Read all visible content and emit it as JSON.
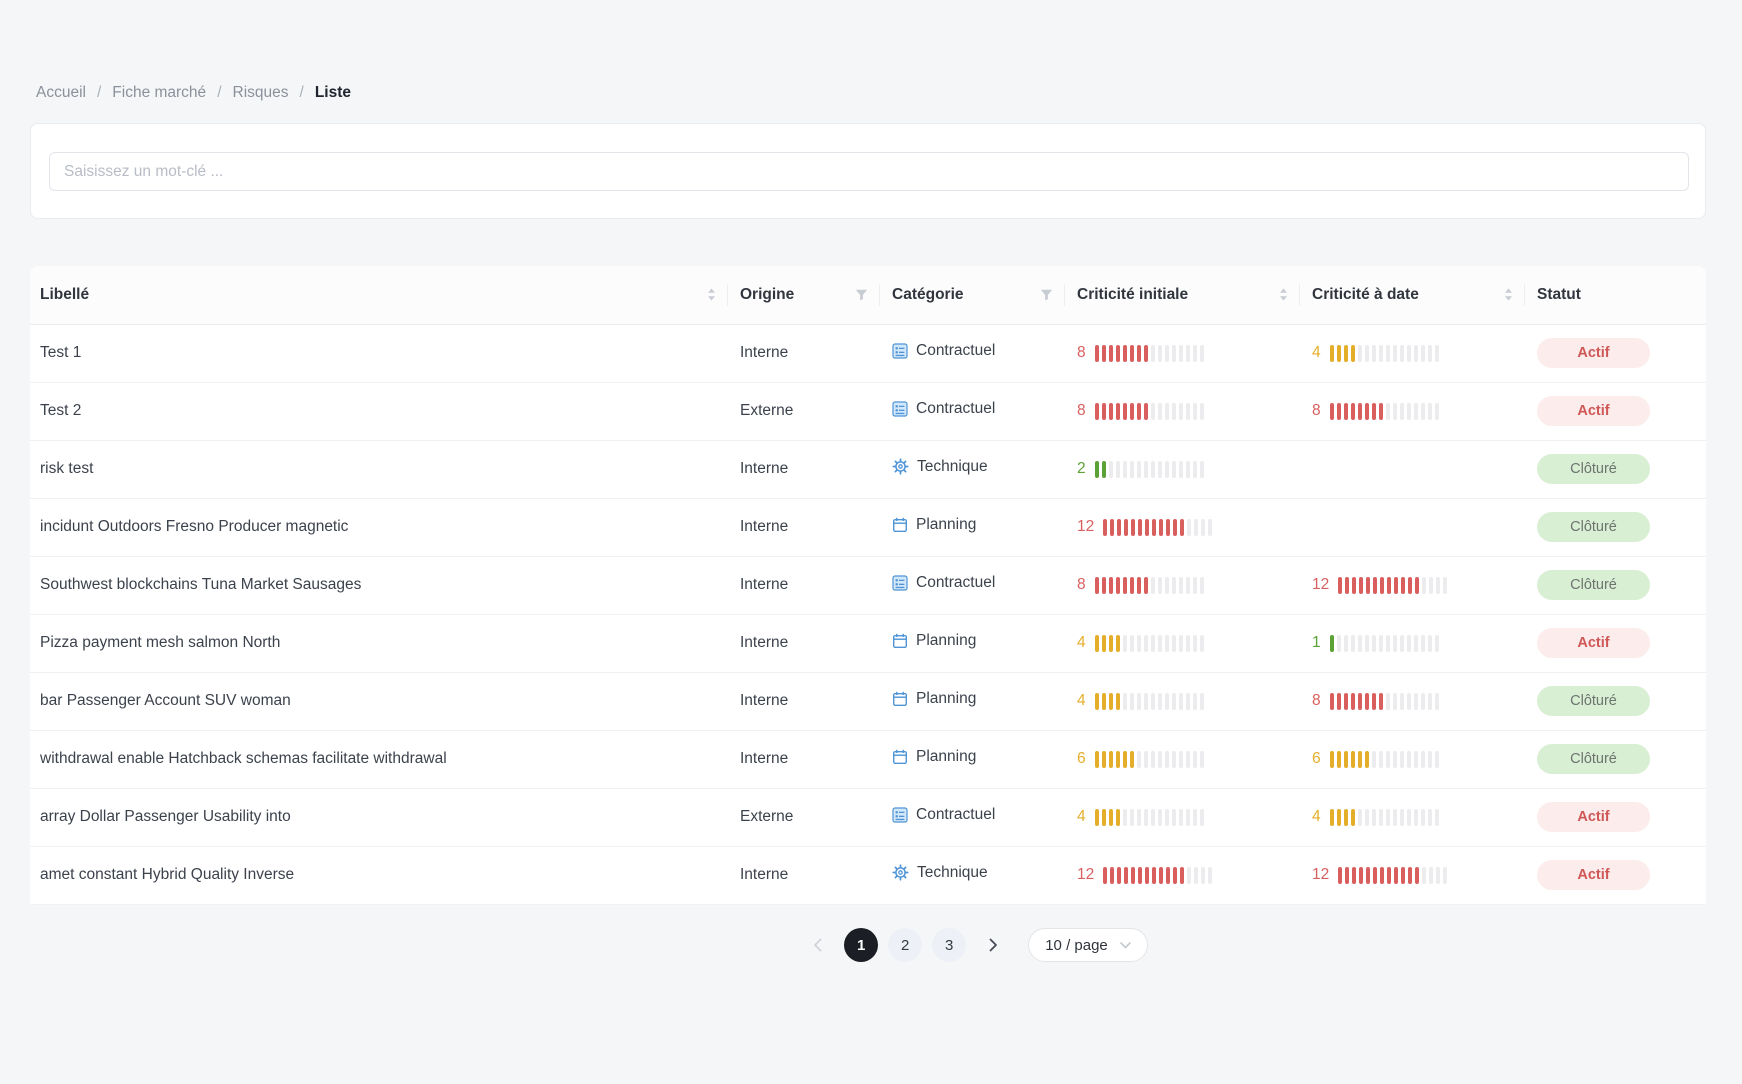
{
  "breadcrumb": {
    "separator": "/",
    "items": [
      {
        "label": "Accueil",
        "current": false
      },
      {
        "label": "Fiche marché",
        "current": false
      },
      {
        "label": "Risques",
        "current": false
      },
      {
        "label": "Liste",
        "current": true
      }
    ]
  },
  "search": {
    "placeholder": "Saisissez un mot-clé ..."
  },
  "table": {
    "columns": [
      {
        "label": "Libellé",
        "control": "sorter"
      },
      {
        "label": "Origine",
        "control": "filter"
      },
      {
        "label": "Catégorie",
        "control": "filter"
      },
      {
        "label": "Criticité initiale",
        "control": "sorter"
      },
      {
        "label": "Criticité à date",
        "control": "sorter"
      },
      {
        "label": "Statut",
        "control": "none"
      }
    ],
    "criticality_scale_max": 16,
    "category_icon_color": "#4e94d6",
    "level_colors": {
      "high": "#d95f5f",
      "medium": "#e5ae2a",
      "low": "#5ba135",
      "empty_bar": "#ececee"
    },
    "status_styles": {
      "Actif": {
        "bg": "#fdecec",
        "color": "#ce5757",
        "weight": "700"
      },
      "Clôturé": {
        "bg": "#d9efd3",
        "color": "#6d736f",
        "weight": "400"
      }
    },
    "rows": [
      {
        "libelle": "Test 1",
        "origine": "Interne",
        "categorie": "Contractuel",
        "categorie_icon": "contract-icon",
        "criticite_initiale": 8,
        "criticite_initiale_level": "high",
        "criticite_a_date": 4,
        "criticite_a_date_level": "medium",
        "statut": "Actif"
      },
      {
        "libelle": "Test 2",
        "origine": "Externe",
        "categorie": "Contractuel",
        "categorie_icon": "contract-icon",
        "criticite_initiale": 8,
        "criticite_initiale_level": "high",
        "criticite_a_date": 8,
        "criticite_a_date_level": "high",
        "statut": "Actif"
      },
      {
        "libelle": "risk test",
        "origine": "Interne",
        "categorie": "Technique",
        "categorie_icon": "gear-icon",
        "criticite_initiale": 2,
        "criticite_initiale_level": "low",
        "criticite_a_date": null,
        "criticite_a_date_level": null,
        "statut": "Clôturé"
      },
      {
        "libelle": "incidunt Outdoors Fresno Producer magnetic",
        "origine": "Interne",
        "categorie": "Planning",
        "categorie_icon": "calendar-icon",
        "criticite_initiale": 12,
        "criticite_initiale_level": "high",
        "criticite_a_date": null,
        "criticite_a_date_level": null,
        "statut": "Clôturé"
      },
      {
        "libelle": "Southwest blockchains Tuna Market Sausages",
        "origine": "Interne",
        "categorie": "Contractuel",
        "categorie_icon": "contract-icon",
        "criticite_initiale": 8,
        "criticite_initiale_level": "high",
        "criticite_a_date": 12,
        "criticite_a_date_level": "high",
        "statut": "Clôturé"
      },
      {
        "libelle": "Pizza payment mesh salmon North",
        "origine": "Interne",
        "categorie": "Planning",
        "categorie_icon": "calendar-icon",
        "criticite_initiale": 4,
        "criticite_initiale_level": "medium",
        "criticite_a_date": 1,
        "criticite_a_date_level": "low",
        "statut": "Actif"
      },
      {
        "libelle": "bar Passenger Account SUV woman",
        "origine": "Interne",
        "categorie": "Planning",
        "categorie_icon": "calendar-icon",
        "criticite_initiale": 4,
        "criticite_initiale_level": "medium",
        "criticite_a_date": 8,
        "criticite_a_date_level": "high",
        "statut": "Clôturé"
      },
      {
        "libelle": "withdrawal enable Hatchback schemas facilitate withdrawal",
        "origine": "Interne",
        "categorie": "Planning",
        "categorie_icon": "calendar-icon",
        "criticite_initiale": 6,
        "criticite_initiale_level": "medium",
        "criticite_a_date": 6,
        "criticite_a_date_level": "medium",
        "statut": "Clôturé"
      },
      {
        "libelle": "array Dollar Passenger Usability into",
        "origine": "Externe",
        "categorie": "Contractuel",
        "categorie_icon": "contract-icon",
        "criticite_initiale": 4,
        "criticite_initiale_level": "medium",
        "criticite_a_date": 4,
        "criticite_a_date_level": "medium",
        "statut": "Actif"
      },
      {
        "libelle": "amet constant Hybrid Quality Inverse",
        "origine": "Interne",
        "categorie": "Technique",
        "categorie_icon": "gear-icon",
        "criticite_initiale": 12,
        "criticite_initiale_level": "high",
        "criticite_a_date": 12,
        "criticite_a_date_level": "high",
        "statut": "Actif"
      }
    ]
  },
  "pagination": {
    "prev_icon": "chevron-left-icon",
    "next_icon": "chevron-right-icon",
    "pages": [
      "1",
      "2",
      "3"
    ],
    "active_page": "1",
    "page_size": {
      "label": "10 / page",
      "icon": "chevron-down-icon"
    }
  }
}
